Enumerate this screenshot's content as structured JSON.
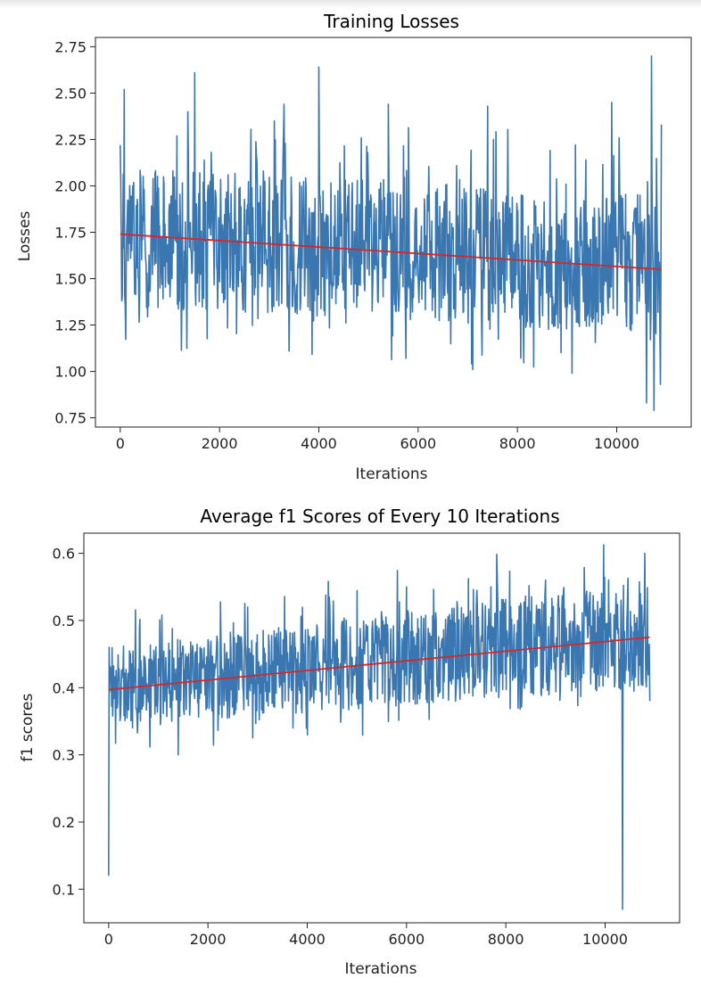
{
  "chart_data": [
    {
      "type": "line",
      "title": "Training Losses",
      "xlabel": "Iterations",
      "ylabel": "Losses",
      "xlim": [
        -500,
        11500
      ],
      "ylim": [
        0.7,
        2.8
      ],
      "xticks": [
        0,
        2000,
        4000,
        6000,
        8000,
        10000
      ],
      "xtick_labels": [
        "0",
        "2000",
        "4000",
        "6000",
        "8000",
        "10000"
      ],
      "yticks": [
        0.75,
        1.0,
        1.25,
        1.5,
        1.75,
        2.0,
        2.25,
        2.5,
        2.75
      ],
      "ytick_labels": [
        "0.75",
        "1.00",
        "1.25",
        "1.50",
        "1.75",
        "2.00",
        "2.25",
        "2.50",
        "2.75"
      ],
      "grid": false,
      "series": [
        {
          "role": "data",
          "color": "#3a76af",
          "x_range": [
            0,
            10900
          ],
          "n_points": 1090,
          "band_start": [
            1.35,
            2.1
          ],
          "band_end": [
            1.2,
            1.95
          ],
          "spikes": [
            [
              0,
              2.22
            ],
            [
              80,
              2.52
            ],
            [
              1500,
              2.61
            ],
            [
              3300,
              2.44
            ],
            [
              4000,
              2.64
            ],
            [
              5400,
              2.44
            ],
            [
              7400,
              2.43
            ],
            [
              9900,
              2.45
            ],
            [
              10700,
              2.7
            ],
            [
              10900,
              2.33
            ],
            [
              3400,
              1.11
            ],
            [
              7100,
              1.01
            ],
            [
              9100,
              0.99
            ],
            [
              10600,
              0.83
            ],
            [
              10750,
              0.79
            ],
            [
              10880,
              0.93
            ]
          ],
          "range": [
            0.79,
            2.7
          ]
        },
        {
          "role": "trend",
          "color": "#d62728",
          "x": [
            0,
            10900
          ],
          "y": [
            1.74,
            1.55
          ]
        }
      ]
    },
    {
      "type": "line",
      "title": "Average f1 Scores of Every 10 Iterations",
      "xlabel": "Iterations",
      "ylabel": "f1 scores",
      "xlim": [
        -500,
        11500
      ],
      "ylim": [
        0.05,
        0.63
      ],
      "xticks": [
        0,
        2000,
        4000,
        6000,
        8000,
        10000
      ],
      "xtick_labels": [
        "0",
        "2000",
        "4000",
        "6000",
        "8000",
        "10000"
      ],
      "yticks": [
        0.1,
        0.2,
        0.3,
        0.4,
        0.5,
        0.6
      ],
      "ytick_labels": [
        "0.1",
        "0.2",
        "0.3",
        "0.4",
        "0.5",
        "0.6"
      ],
      "grid": false,
      "series": [
        {
          "role": "data",
          "color": "#3a76af",
          "x_range": [
            0,
            10900
          ],
          "n_points": 1090,
          "band_start": [
            0.34,
            0.46
          ],
          "band_end": [
            0.4,
            0.56
          ],
          "spikes": [
            [
              0,
              0.12
            ],
            [
              10,
              0.46
            ],
            [
              1400,
              0.3
            ],
            [
              2800,
              0.52
            ],
            [
              6000,
              0.55
            ],
            [
              7700,
              0.55
            ],
            [
              8800,
              0.56
            ],
            [
              10350,
              0.07
            ],
            [
              10800,
              0.6
            ],
            [
              10900,
              0.38
            ]
          ],
          "range": [
            0.07,
            0.6
          ]
        },
        {
          "role": "trend",
          "color": "#d62728",
          "x": [
            0,
            10900
          ],
          "y": [
            0.397,
            0.475
          ]
        }
      ]
    }
  ]
}
